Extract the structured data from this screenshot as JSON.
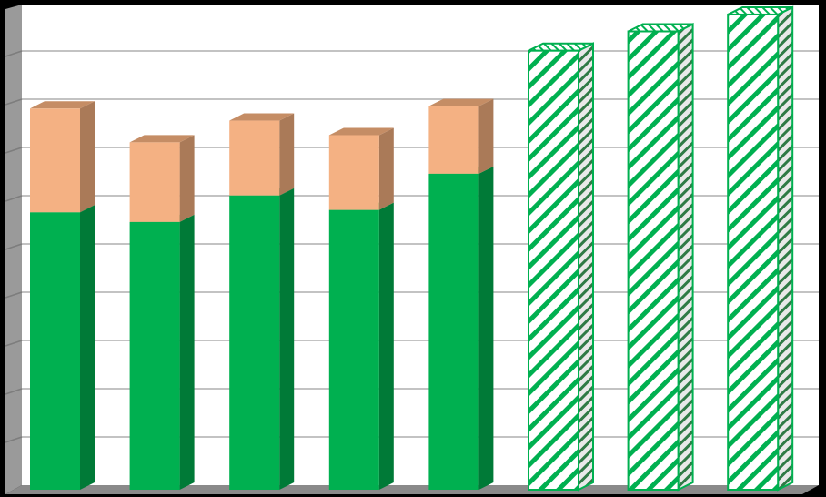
{
  "chart_data": {
    "type": "bar",
    "stacked": true,
    "title": "",
    "xlabel": "",
    "ylabel": "",
    "categories": [
      "",
      "",
      "",
      "",
      "",
      "",
      "",
      ""
    ],
    "ylim": [
      0,
      10
    ],
    "y_gridlines": 10,
    "tick_labels_shown": false,
    "legend": "none",
    "series": [
      {
        "name": "",
        "style": "solid",
        "values": [
          5.75,
          5.55,
          6.1,
          5.8,
          6.55,
          null,
          null,
          null
        ]
      },
      {
        "name": "",
        "style": "solid",
        "values": [
          2.15,
          1.65,
          1.55,
          1.55,
          1.4,
          null,
          null,
          null
        ]
      },
      {
        "name": "",
        "style": "hatched",
        "values": [
          null,
          null,
          null,
          null,
          null,
          9.1,
          9.5,
          9.85
        ]
      }
    ],
    "colors": {
      "solid_green": "#00b050",
      "solid_green_side": "#007a37",
      "peach": "#f4b183",
      "peach_top": "#c58d65",
      "peach_side": "#aa7a58",
      "hatch_green": "#00b050",
      "frame_border": "#000000",
      "plot_background": "#ffffff",
      "gridline": "#c3c3c3",
      "side_wall": "#9a9a9a",
      "floor": "#8a8a8a"
    }
  }
}
